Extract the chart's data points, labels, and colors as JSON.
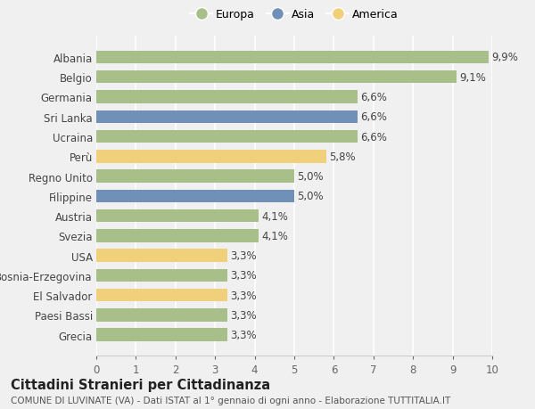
{
  "categories": [
    "Grecia",
    "Paesi Bassi",
    "El Salvador",
    "Bosnia-Erzegovina",
    "USA",
    "Svezia",
    "Austria",
    "Filippine",
    "Regno Unito",
    "Perù",
    "Ucraina",
    "Sri Lanka",
    "Germania",
    "Belgio",
    "Albania"
  ],
  "values": [
    3.3,
    3.3,
    3.3,
    3.3,
    3.3,
    4.1,
    4.1,
    5.0,
    5.0,
    5.8,
    6.6,
    6.6,
    6.6,
    9.1,
    9.9
  ],
  "continents": [
    "Europa",
    "Europa",
    "America",
    "Europa",
    "America",
    "Europa",
    "Europa",
    "Asia",
    "Europa",
    "America",
    "Europa",
    "Asia",
    "Europa",
    "Europa",
    "Europa"
  ],
  "labels": [
    "3,3%",
    "3,3%",
    "3,3%",
    "3,3%",
    "3,3%",
    "4,1%",
    "4,1%",
    "5,0%",
    "5,0%",
    "5,8%",
    "6,6%",
    "6,6%",
    "6,6%",
    "9,1%",
    "9,9%"
  ],
  "color_europa": "#a8bf8a",
  "color_asia": "#7090b8",
  "color_america": "#f0d07a",
  "xlim": [
    0,
    10
  ],
  "xticks": [
    0,
    1,
    2,
    3,
    4,
    5,
    6,
    7,
    8,
    9,
    10
  ],
  "title": "Cittadini Stranieri per Cittadinanza",
  "subtitle": "COMUNE DI LUVINATE (VA) - Dati ISTAT al 1° gennaio di ogni anno - Elaborazione TUTTITALIA.IT",
  "bg_color": "#f0f0f0",
  "bar_height": 0.65,
  "label_fontsize": 8.5,
  "ytick_fontsize": 8.5,
  "xtick_fontsize": 8.5,
  "title_fontsize": 10.5,
  "subtitle_fontsize": 7.5
}
